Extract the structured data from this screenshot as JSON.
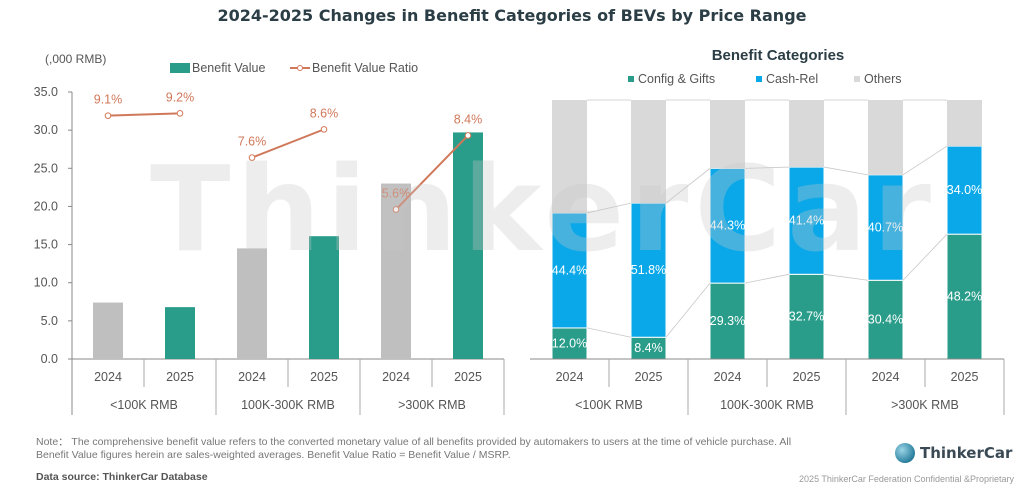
{
  "title": "2024-2025 Changes in Benefit Categories of BEVs by Price Range",
  "watermark": "ThinkerCar",
  "chart_data": [
    {
      "type": "bar",
      "subtype": "bar+line",
      "unit_label": "(,000 RMB)",
      "ylim": [
        0,
        35
      ],
      "yticks": [
        "0.0",
        "5.0",
        "10.0",
        "15.0",
        "20.0",
        "25.0",
        "30.0",
        "35.0"
      ],
      "grid": false,
      "legend": {
        "position": "top",
        "entries": [
          "Benefit Value",
          "Benefit Value Ratio"
        ]
      },
      "groups": [
        "<100K RMB",
        "100K-300K RMB",
        ">300K RMB"
      ],
      "categories": [
        "2024",
        "2025",
        "2024",
        "2025",
        "2024",
        "2025"
      ],
      "series": [
        {
          "name": "Benefit Value",
          "type": "bar",
          "values": [
            7.4,
            6.8,
            14.5,
            16.1,
            23.0,
            29.7
          ],
          "colors": [
            "#bfbfbf",
            "#2a9d8a",
            "#bfbfbf",
            "#2a9d8a",
            "#bfbfbf",
            "#2a9d8a"
          ]
        },
        {
          "name": "Benefit Value Ratio",
          "type": "line",
          "color": "#d0785a",
          "labels": [
            "9.1%",
            "9.2%",
            "7.6%",
            "8.6%",
            "5.6%",
            "8.4%"
          ],
          "values_pct": [
            9.1,
            9.2,
            7.6,
            8.6,
            5.6,
            8.4
          ],
          "plotted_at": [
            31.9,
            32.2,
            26.4,
            30.1,
            19.6,
            29.3
          ]
        }
      ]
    },
    {
      "type": "bar",
      "subtype": "stacked-percent",
      "title": "Benefit Categories",
      "legend": {
        "position": "top",
        "entries": [
          "Config & Gifts",
          "Cash-Rel",
          "Others"
        ]
      },
      "groups": [
        "<100K RMB",
        "100K-300K RMB",
        ">300K RMB"
      ],
      "categories": [
        "2024",
        "2025",
        "2024",
        "2025",
        "2024",
        "2025"
      ],
      "ylim": [
        0,
        100
      ],
      "series": [
        {
          "name": "Config & Gifts",
          "color": "#2a9d8a",
          "values": [
            12.0,
            8.4,
            29.3,
            32.7,
            30.4,
            48.2
          ],
          "labels": [
            "12.0%",
            "8.4%",
            "29.3%",
            "32.7%",
            "30.4%",
            "48.2%"
          ]
        },
        {
          "name": "Cash-Rel",
          "color": "#0aa8e8",
          "values": [
            44.4,
            51.8,
            44.3,
            41.4,
            40.7,
            34.0
          ],
          "labels": [
            "44.4%",
            "51.8%",
            "44.3%",
            "41.4%",
            "40.7%",
            "34.0%"
          ]
        },
        {
          "name": "Others",
          "color": "#d9d9d9",
          "values": [
            43.6,
            39.8,
            26.4,
            25.9,
            28.9,
            17.8
          ]
        }
      ]
    }
  ],
  "footer": {
    "note": "Note： The comprehensive benefit value refers to the converted monetary value of all benefits provided by automakers to users at the time of vehicle purchase. All Benefit Value figures herein are sales-weighted averages. Benefit Value Ratio = Benefit Value / MSRP.",
    "source": "Data source: ThinkerCar Database",
    "brand": "ThinkerCar",
    "copyright": "2025 ThinkerCar Federation Confidential &Proprietary"
  }
}
